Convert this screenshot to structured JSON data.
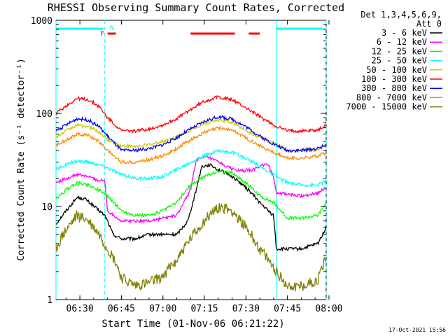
{
  "title": "RHESSI Observing Summary Count Rates, Corrected",
  "footer_date": "17-Oct-2021 15:56",
  "legend_header": [
    "Det 1,3,4,5,6,9,",
    "Att 0"
  ],
  "flags": {
    "F": "F",
    "N": "N"
  },
  "chart_data": {
    "type": "line",
    "title": "RHESSI Observing Summary Count Rates, Corrected",
    "xlabel": "Start Time (01-Nov-06 06:21:22)",
    "ylabel": "Corrected Count Rate (s⁻¹ detector⁻¹)",
    "y_scale": "log",
    "ylim": [
      1,
      1000
    ],
    "xlim": [
      "06:21:22",
      "07:59:00"
    ],
    "x_ticks": [
      "06:30",
      "06:45",
      "07:00",
      "07:15",
      "07:30",
      "07:45",
      "08:00"
    ],
    "y_ticks": [
      "1",
      "10",
      "100",
      "1000"
    ],
    "legend_position": "right",
    "night_intervals": [
      [
        "06:21:22",
        "06:39:00"
      ],
      [
        "07:41:00",
        "07:59:00"
      ]
    ],
    "flag_bars": {
      "N": [
        [
          "06:21:22",
          "06:38:30"
        ],
        [
          "07:41:00",
          "07:58:00"
        ]
      ],
      "F": [
        [
          "06:40:00",
          "06:43:00"
        ],
        [
          "07:10:00",
          "07:26:00"
        ],
        [
          "07:31:00",
          "07:35:00"
        ]
      ]
    },
    "series": [
      {
        "name": "3 - 6 keV",
        "color": "#000000",
        "values": [
          [
            "06:21:22",
            6.5
          ],
          [
            "06:25",
            9
          ],
          [
            "06:29",
            12.5
          ],
          [
            "06:32",
            12
          ],
          [
            "06:36",
            9.5
          ],
          [
            "06:39",
            8
          ],
          [
            "06:40",
            7
          ],
          [
            "06:42",
            5
          ],
          [
            "06:45",
            4.5
          ],
          [
            "06:50",
            4.5
          ],
          [
            "06:55",
            5
          ],
          [
            "07:00",
            5
          ],
          [
            "07:05",
            5
          ],
          [
            "07:09",
            7
          ],
          [
            "07:12",
            15
          ],
          [
            "07:14",
            27
          ],
          [
            "07:17",
            28
          ],
          [
            "07:20",
            25
          ],
          [
            "07:24",
            22
          ],
          [
            "07:28",
            18
          ],
          [
            "07:32",
            14
          ],
          [
            "07:35",
            11
          ],
          [
            "07:38",
            9
          ],
          [
            "07:40",
            8
          ],
          [
            "07:41",
            3.5
          ],
          [
            "07:45",
            3.5
          ],
          [
            "07:50",
            3.5
          ],
          [
            "07:56",
            4
          ],
          [
            "07:59",
            6
          ]
        ]
      },
      {
        "name": "6 - 12 keV",
        "color": "#ff00ff",
        "values": [
          [
            "06:21:22",
            18
          ],
          [
            "06:25",
            20
          ],
          [
            "06:29",
            22
          ],
          [
            "06:33",
            21
          ],
          [
            "06:37",
            19
          ],
          [
            "06:39",
            19
          ],
          [
            "06:40",
            9
          ],
          [
            "06:45",
            7
          ],
          [
            "06:55",
            7
          ],
          [
            "07:05",
            8
          ],
          [
            "07:10",
            15
          ],
          [
            "07:12",
            32
          ],
          [
            "07:16",
            34
          ],
          [
            "07:20",
            30
          ],
          [
            "07:24",
            26
          ],
          [
            "07:28",
            24
          ],
          [
            "07:33",
            25
          ],
          [
            "07:36",
            28
          ],
          [
            "07:38",
            28
          ],
          [
            "07:40",
            21
          ],
          [
            "07:41",
            14
          ],
          [
            "07:50",
            13
          ],
          [
            "07:56",
            14
          ],
          [
            "07:59",
            16
          ]
        ]
      },
      {
        "name": "12 - 25 keV",
        "color": "#00ff00",
        "values": [
          [
            "06:21:22",
            12
          ],
          [
            "06:25",
            15
          ],
          [
            "06:29",
            18
          ],
          [
            "06:33",
            17
          ],
          [
            "06:37",
            15
          ],
          [
            "06:40",
            13
          ],
          [
            "06:45",
            9
          ],
          [
            "06:50",
            8
          ],
          [
            "06:55",
            8
          ],
          [
            "07:00",
            9
          ],
          [
            "07:05",
            11
          ],
          [
            "07:10",
            17
          ],
          [
            "07:15",
            21
          ],
          [
            "07:20",
            24
          ],
          [
            "07:25",
            23
          ],
          [
            "07:30",
            18
          ],
          [
            "07:35",
            13
          ],
          [
            "07:40",
            11
          ],
          [
            "07:45",
            7.5
          ],
          [
            "07:50",
            7.5
          ],
          [
            "07:56",
            8
          ],
          [
            "07:59",
            11
          ]
        ]
      },
      {
        "name": "25 - 50 keV",
        "color": "#00ffff",
        "values": [
          [
            "06:21:22",
            25
          ],
          [
            "06:25",
            28
          ],
          [
            "06:29",
            31
          ],
          [
            "06:33",
            30
          ],
          [
            "06:37",
            28
          ],
          [
            "06:40",
            26
          ],
          [
            "06:45",
            22
          ],
          [
            "06:50",
            20
          ],
          [
            "06:55",
            20
          ],
          [
            "07:00",
            21
          ],
          [
            "07:05",
            25
          ],
          [
            "07:10",
            30
          ],
          [
            "07:15",
            35
          ],
          [
            "07:20",
            40
          ],
          [
            "07:25",
            38
          ],
          [
            "07:30",
            33
          ],
          [
            "07:35",
            27
          ],
          [
            "07:40",
            22
          ],
          [
            "07:45",
            18
          ],
          [
            "07:50",
            17
          ],
          [
            "07:56",
            17
          ],
          [
            "07:59",
            19
          ]
        ]
      },
      {
        "name": "50 - 100 keV",
        "color": "#cccc00",
        "values": [
          [
            "06:21:22",
            55
          ],
          [
            "06:25",
            65
          ],
          [
            "06:29",
            75
          ],
          [
            "06:33",
            72
          ],
          [
            "06:37",
            63
          ],
          [
            "06:40",
            52
          ],
          [
            "06:45",
            45
          ],
          [
            "06:50",
            44
          ],
          [
            "06:55",
            46
          ],
          [
            "07:00",
            50
          ],
          [
            "07:05",
            56
          ],
          [
            "07:10",
            66
          ],
          [
            "07:15",
            78
          ],
          [
            "07:20",
            85
          ],
          [
            "07:25",
            80
          ],
          [
            "07:30",
            66
          ],
          [
            "07:35",
            55
          ],
          [
            "07:40",
            48
          ],
          [
            "07:45",
            40
          ],
          [
            "07:50",
            40
          ],
          [
            "07:56",
            41
          ],
          [
            "07:59",
            45
          ]
        ]
      },
      {
        "name": "100 - 300 keV",
        "color": "#ff0000",
        "values": [
          [
            "06:21:22",
            100
          ],
          [
            "06:25",
            120
          ],
          [
            "06:29",
            145
          ],
          [
            "06:33",
            140
          ],
          [
            "06:37",
            118
          ],
          [
            "06:40",
            90
          ],
          [
            "06:45",
            65
          ],
          [
            "06:50",
            65
          ],
          [
            "06:55",
            68
          ],
          [
            "07:00",
            75
          ],
          [
            "07:05",
            88
          ],
          [
            "07:10",
            110
          ],
          [
            "07:15",
            135
          ],
          [
            "07:20",
            150
          ],
          [
            "07:25",
            140
          ],
          [
            "07:30",
            115
          ],
          [
            "07:35",
            92
          ],
          [
            "07:40",
            75
          ],
          [
            "07:45",
            65
          ],
          [
            "07:50",
            65
          ],
          [
            "07:56",
            66
          ],
          [
            "07:59",
            75
          ]
        ]
      },
      {
        "name": "300 - 800 keV",
        "color": "#0000ff",
        "values": [
          [
            "06:21:22",
            65
          ],
          [
            "06:25",
            75
          ],
          [
            "06:29",
            88
          ],
          [
            "06:33",
            85
          ],
          [
            "06:37",
            72
          ],
          [
            "06:40",
            57
          ],
          [
            "06:45",
            40
          ],
          [
            "06:50",
            40
          ],
          [
            "06:55",
            42
          ],
          [
            "07:00",
            46
          ],
          [
            "07:05",
            55
          ],
          [
            "07:10",
            68
          ],
          [
            "07:15",
            82
          ],
          [
            "07:20",
            92
          ],
          [
            "07:25",
            87
          ],
          [
            "07:30",
            72
          ],
          [
            "07:35",
            57
          ],
          [
            "07:40",
            47
          ],
          [
            "07:45",
            40
          ],
          [
            "07:50",
            40
          ],
          [
            "07:56",
            42
          ],
          [
            "07:59",
            46
          ]
        ]
      },
      {
        "name": "800 - 7000 keV",
        "color": "#ff8800",
        "values": [
          [
            "06:21:22",
            45
          ],
          [
            "06:25",
            52
          ],
          [
            "06:29",
            60
          ],
          [
            "06:33",
            58
          ],
          [
            "06:37",
            50
          ],
          [
            "06:40",
            40
          ],
          [
            "06:45",
            30
          ],
          [
            "06:50",
            30
          ],
          [
            "06:55",
            32
          ],
          [
            "07:00",
            35
          ],
          [
            "07:05",
            42
          ],
          [
            "07:10",
            52
          ],
          [
            "07:15",
            62
          ],
          [
            "07:20",
            70
          ],
          [
            "07:25",
            66
          ],
          [
            "07:30",
            55
          ],
          [
            "07:35",
            45
          ],
          [
            "07:40",
            38
          ],
          [
            "07:45",
            33
          ],
          [
            "07:50",
            33
          ],
          [
            "07:56",
            35
          ],
          [
            "07:59",
            38
          ]
        ]
      },
      {
        "name": "7000 - 15000 keV",
        "color": "#808000",
        "values": [
          [
            "06:21:22",
            3.5
          ],
          [
            "06:24",
            5
          ],
          [
            "06:29",
            8
          ],
          [
            "06:33",
            7
          ],
          [
            "06:37",
            5
          ],
          [
            "06:40",
            3.5
          ],
          [
            "06:43",
            2.5
          ],
          [
            "06:45",
            1.7
          ],
          [
            "06:50",
            1.4
          ],
          [
            "06:55",
            1.5
          ],
          [
            "07:00",
            1.8
          ],
          [
            "07:05",
            2.7
          ],
          [
            "07:10",
            4.5
          ],
          [
            "07:15",
            7
          ],
          [
            "07:20",
            10
          ],
          [
            "07:25",
            9
          ],
          [
            "07:30",
            6
          ],
          [
            "07:35",
            3.5
          ],
          [
            "07:40",
            2.2
          ],
          [
            "07:45",
            1.4
          ],
          [
            "07:50",
            1.4
          ],
          [
            "07:56",
            1.6
          ],
          [
            "07:59",
            3
          ]
        ]
      }
    ]
  }
}
